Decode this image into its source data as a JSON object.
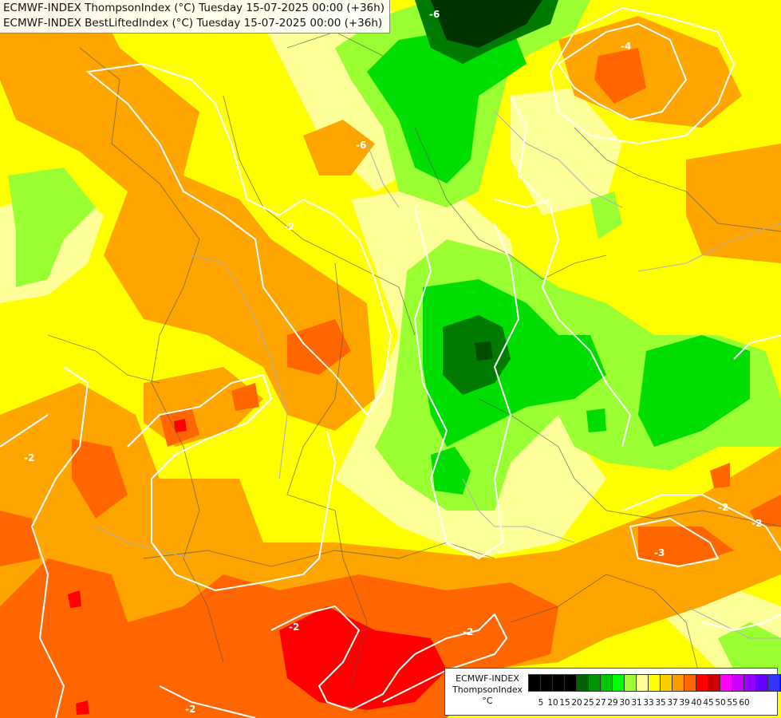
{
  "titles": {
    "line1": "ECMWF-INDEX ThompsonIndex (°C) Tuesday 15-07-2025 00:00 (+36h)",
    "line2": "ECMWF-INDEX BestLiftedIndex (°C) Tuesday 15-07-2025 00:00 (+36h)"
  },
  "legend": {
    "name": "ECMWF-INDEX",
    "field": "ThompsonIndex",
    "unit": "°C",
    "ticks": [
      "5",
      "10",
      "15",
      "20",
      "25",
      "27",
      "29",
      "30",
      "31",
      "33",
      "35",
      "37",
      "39",
      "40",
      "45",
      "50",
      "55",
      "60"
    ],
    "colors": [
      "#000000",
      "#000000",
      "#000000",
      "#000000",
      "#006400",
      "#009600",
      "#00c800",
      "#00ff00",
      "#99ff33",
      "#ffff99",
      "#ffff00",
      "#ffcc00",
      "#ff9900",
      "#ff6600",
      "#ff0000",
      "#cc0000",
      "#ff00ff",
      "#cc00ff",
      "#9900ff",
      "#6600ff",
      "#3333ff",
      "#0000ff"
    ]
  },
  "contour_labels": [
    "-2",
    "-2",
    "-2",
    "-2",
    "-2",
    "-2",
    "-2",
    "-3",
    "-4",
    "-6",
    "-6"
  ],
  "colors": {
    "bg_yellow": "#ffff00",
    "light_yellow": "#ffff99",
    "gold": "#ffcc00",
    "orange": "#ffa500",
    "dark_orange": "#ff6600",
    "red": "#ff0000",
    "lime": "#99ff33",
    "green": "#00cc00",
    "dark_green": "#007a00",
    "darkest_green": "#003300"
  }
}
